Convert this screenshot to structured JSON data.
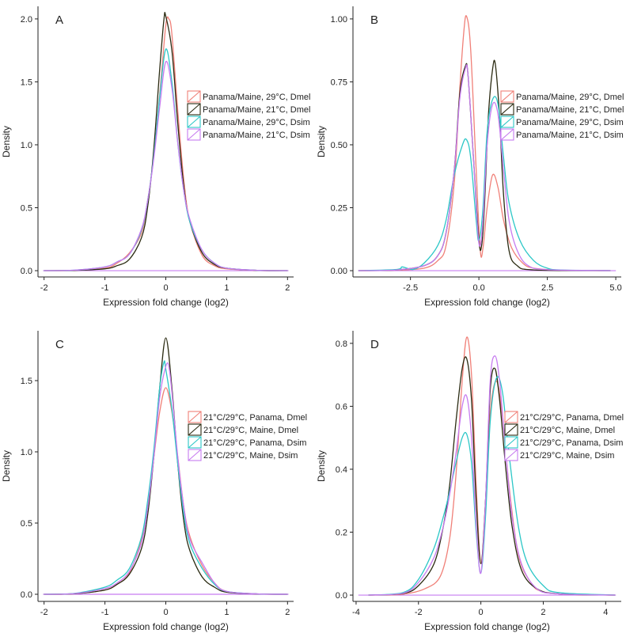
{
  "colors": {
    "red": "#f08078",
    "black": "#2b2b12",
    "cyan": "#2cc7c7",
    "purple": "#c77cf0"
  },
  "chart_data": [
    {
      "type": "line",
      "panel": "A",
      "xlabel": "Expression fold change (log2)",
      "ylabel": "Density",
      "xlim": [
        -2.1,
        2.1
      ],
      "ylim": [
        -0.05,
        2.1
      ],
      "xticks": [
        -2,
        -1,
        0,
        1,
        2
      ],
      "xtick_labels": [
        "-2",
        "-1",
        "0",
        "1",
        "2"
      ],
      "yticks": [
        0,
        0.5,
        1,
        1.5,
        2
      ],
      "ytick_labels": [
        "0.0",
        "0.5",
        "1.0",
        "1.5",
        "2.0"
      ],
      "legend_position": "right",
      "legend": [
        "Panama/Maine, 29°C, Dmel",
        "Panama/Maine, 21°C, Dmel",
        "Panama/Maine, 29°C, Dsim",
        "Panama/Maine, 21°C, Dsim"
      ],
      "series": [
        {
          "name": "Panama/Maine, 29°C, Dmel",
          "color": "red",
          "x": [
            -2,
            -1.5,
            -1,
            -0.8,
            -0.6,
            -0.4,
            -0.3,
            -0.2,
            -0.1,
            0,
            0.05,
            0.1,
            0.2,
            0.3,
            0.4,
            0.6,
            0.8,
            1,
            1.5,
            2
          ],
          "y": [
            0,
            0.003,
            0.02,
            0.06,
            0.14,
            0.3,
            0.55,
            0.9,
            1.4,
            1.95,
            2.0,
            1.88,
            1.25,
            0.7,
            0.38,
            0.12,
            0.04,
            0.015,
            0.002,
            0
          ]
        },
        {
          "name": "Panama/Maine, 21°C, Dmel",
          "color": "black",
          "x": [
            -2,
            -1.5,
            -1,
            -0.8,
            -0.6,
            -0.4,
            -0.3,
            -0.2,
            -0.1,
            -0.03,
            0,
            0.1,
            0.2,
            0.3,
            0.4,
            0.6,
            0.8,
            1,
            1.5,
            2
          ],
          "y": [
            0,
            0.002,
            0.015,
            0.04,
            0.09,
            0.26,
            0.5,
            0.95,
            1.6,
            2.0,
            2.02,
            1.75,
            1.15,
            0.65,
            0.38,
            0.14,
            0.05,
            0.02,
            0.002,
            0
          ]
        },
        {
          "name": "Panama/Maine, 29°C, Dsim",
          "color": "cyan",
          "x": [
            -2,
            -1.5,
            -1,
            -0.8,
            -0.6,
            -0.4,
            -0.3,
            -0.2,
            -0.1,
            0,
            0.1,
            0.2,
            0.3,
            0.4,
            0.6,
            0.8,
            1,
            1.5,
            2
          ],
          "y": [
            0,
            0.004,
            0.03,
            0.07,
            0.13,
            0.32,
            0.55,
            0.9,
            1.38,
            1.76,
            1.5,
            1.0,
            0.62,
            0.38,
            0.16,
            0.06,
            0.02,
            0.003,
            0
          ]
        },
        {
          "name": "Panama/Maine, 21°C, Dsim",
          "color": "purple",
          "x": [
            -2,
            -1.5,
            -1,
            -0.8,
            -0.6,
            -0.4,
            -0.3,
            -0.2,
            -0.1,
            0,
            0.1,
            0.2,
            0.3,
            0.4,
            0.6,
            0.8,
            1,
            1.5,
            2
          ],
          "y": [
            0,
            0.004,
            0.03,
            0.07,
            0.13,
            0.33,
            0.55,
            0.88,
            1.3,
            1.66,
            1.45,
            1.0,
            0.62,
            0.4,
            0.16,
            0.06,
            0.02,
            0.003,
            0
          ]
        }
      ]
    },
    {
      "type": "line",
      "panel": "B",
      "xlabel": "Expression fold change (log2)",
      "ylabel": "Density",
      "xlim": [
        -4.6,
        5.2
      ],
      "ylim": [
        -0.025,
        1.05
      ],
      "xticks": [
        -2.5,
        0,
        2.5,
        5
      ],
      "xtick_labels": [
        "-2.5",
        "0.0",
        "2.5",
        "5.0"
      ],
      "yticks": [
        0,
        0.25,
        0.5,
        0.75,
        1
      ],
      "ytick_labels": [
        "0.00",
        "0.25",
        "0.50",
        "0.75",
        "1.00"
      ],
      "legend_position": "right",
      "legend": [
        "Panama/Maine, 29°C, Dmel",
        "Panama/Maine, 21°C, Dmel",
        "Panama/Maine, 29°C, Dsim",
        "Panama/Maine, 21°C, Dsim"
      ],
      "series": [
        {
          "name": "Panama/Maine, 29°C, Dmel",
          "color": "red",
          "x": [
            -4.4,
            -3,
            -2,
            -1.5,
            -1.2,
            -0.9,
            -0.7,
            -0.55,
            -0.45,
            -0.3,
            -0.1,
            0.05,
            0.15,
            0.3,
            0.5,
            0.7,
            0.9,
            1.2,
            1.6,
            2,
            3,
            4.8
          ],
          "y": [
            0,
            0.002,
            0.01,
            0.04,
            0.1,
            0.35,
            0.72,
            0.95,
            1.01,
            0.88,
            0.4,
            0.08,
            0.09,
            0.25,
            0.38,
            0.33,
            0.2,
            0.09,
            0.03,
            0.01,
            0.002,
            0
          ]
        },
        {
          "name": "Panama/Maine, 21°C, Dmel",
          "color": "black",
          "x": [
            -4.4,
            -3,
            -2,
            -1.5,
            -1.2,
            -0.9,
            -0.7,
            -0.5,
            -0.4,
            -0.2,
            0,
            0.1,
            0.2,
            0.35,
            0.5,
            0.6,
            0.75,
            0.9,
            1.1,
            1.4,
            2,
            4.8
          ],
          "y": [
            0,
            0.003,
            0.02,
            0.06,
            0.15,
            0.4,
            0.7,
            0.81,
            0.78,
            0.45,
            0.12,
            0.1,
            0.25,
            0.62,
            0.8,
            0.82,
            0.62,
            0.3,
            0.08,
            0.02,
            0.003,
            0
          ]
        },
        {
          "name": "Panama/Maine, 29°C, Dsim",
          "color": "cyan",
          "x": [
            -4.4,
            -3,
            -2.8,
            -2.4,
            -2,
            -1.5,
            -1.2,
            -0.9,
            -0.6,
            -0.45,
            -0.3,
            -0.1,
            0,
            0.15,
            0.3,
            0.5,
            0.7,
            0.9,
            1.1,
            1.5,
            2,
            2.5,
            3,
            4.8
          ],
          "y": [
            0,
            0.005,
            0.015,
            0.005,
            0.03,
            0.1,
            0.2,
            0.38,
            0.5,
            0.52,
            0.45,
            0.2,
            0.12,
            0.25,
            0.55,
            0.68,
            0.66,
            0.45,
            0.27,
            0.12,
            0.04,
            0.01,
            0.003,
            0
          ]
        },
        {
          "name": "Panama/Maine, 21°C, Dsim",
          "color": "purple",
          "x": [
            -4.4,
            -3,
            -2,
            -1.5,
            -1.2,
            -0.9,
            -0.7,
            -0.5,
            -0.4,
            -0.2,
            0,
            0.15,
            0.3,
            0.5,
            0.7,
            0.9,
            1.1,
            1.4,
            1.8,
            2.5,
            4.8
          ],
          "y": [
            0,
            0.003,
            0.02,
            0.06,
            0.15,
            0.4,
            0.68,
            0.8,
            0.78,
            0.45,
            0.11,
            0.2,
            0.5,
            0.66,
            0.62,
            0.4,
            0.2,
            0.08,
            0.02,
            0.004,
            0
          ]
        }
      ]
    },
    {
      "type": "line",
      "panel": "C",
      "xlabel": "Expression fold change (log2)",
      "ylabel": "Density",
      "xlim": [
        -2.1,
        2.1
      ],
      "ylim": [
        -0.05,
        1.85
      ],
      "xticks": [
        -2,
        -1,
        0,
        1,
        2
      ],
      "xtick_labels": [
        "-2",
        "-1",
        "0",
        "1",
        "2"
      ],
      "yticks": [
        0,
        0.5,
        1,
        1.5
      ],
      "ytick_labels": [
        "0.0",
        "0.5",
        "1.0",
        "1.5"
      ],
      "legend_position": "right",
      "legend": [
        "21°C/29°C, Panama, Dmel",
        "21°C/29°C, Maine, Dmel",
        "21°C/29°C, Panama, Dsim",
        "21°C/29°C, Maine, Dsim"
      ],
      "series": [
        {
          "name": "21°C/29°C, Panama, Dmel",
          "color": "red",
          "x": [
            -2,
            -1.5,
            -1,
            -0.8,
            -0.6,
            -0.4,
            -0.3,
            -0.2,
            -0.1,
            0,
            0.1,
            0.2,
            0.3,
            0.4,
            0.6,
            0.8,
            1,
            1.5,
            2
          ],
          "y": [
            0,
            0.004,
            0.03,
            0.07,
            0.15,
            0.38,
            0.62,
            0.95,
            1.28,
            1.45,
            1.28,
            0.95,
            0.6,
            0.4,
            0.2,
            0.08,
            0.02,
            0.003,
            0
          ]
        },
        {
          "name": "21°C/29°C, Maine, Dmel",
          "color": "black",
          "x": [
            -2,
            -1.5,
            -1,
            -0.8,
            -0.6,
            -0.4,
            -0.3,
            -0.2,
            -0.1,
            0,
            0.1,
            0.2,
            0.3,
            0.4,
            0.6,
            0.8,
            1,
            1.5,
            2
          ],
          "y": [
            0,
            0.004,
            0.03,
            0.07,
            0.14,
            0.32,
            0.55,
            0.95,
            1.45,
            1.8,
            1.45,
            0.9,
            0.5,
            0.3,
            0.12,
            0.05,
            0.015,
            0.002,
            0
          ]
        },
        {
          "name": "21°C/29°C, Panama, Dsim",
          "color": "cyan",
          "x": [
            -2,
            -1.5,
            -1,
            -0.8,
            -0.6,
            -0.4,
            -0.3,
            -0.2,
            -0.1,
            -0.03,
            0,
            0.1,
            0.2,
            0.3,
            0.4,
            0.6,
            0.8,
            1,
            1.5,
            2
          ],
          "y": [
            0,
            0.006,
            0.05,
            0.1,
            0.18,
            0.4,
            0.65,
            1.0,
            1.45,
            1.63,
            1.58,
            1.3,
            0.9,
            0.55,
            0.35,
            0.18,
            0.07,
            0.02,
            0.003,
            0
          ]
        },
        {
          "name": "21°C/29°C, Maine, Dsim",
          "color": "purple",
          "x": [
            -2,
            -1.5,
            -1,
            -0.8,
            -0.6,
            -0.4,
            -0.3,
            -0.2,
            -0.1,
            0,
            0.05,
            0.1,
            0.2,
            0.3,
            0.4,
            0.6,
            0.8,
            1,
            1.5,
            2
          ],
          "y": [
            0,
            0.005,
            0.04,
            0.08,
            0.16,
            0.36,
            0.6,
            0.95,
            1.38,
            1.6,
            1.6,
            1.42,
            0.95,
            0.6,
            0.38,
            0.22,
            0.08,
            0.02,
            0.003,
            0
          ]
        }
      ]
    },
    {
      "type": "line",
      "panel": "D",
      "xlabel": "Expression fold change (log2)",
      "ylabel": "Density",
      "xlim": [
        -4.1,
        4.5
      ],
      "ylim": [
        -0.02,
        0.84
      ],
      "xticks": [
        -4,
        -2,
        0,
        2,
        4
      ],
      "xtick_labels": [
        "-4",
        "-2",
        "0",
        "2",
        "4"
      ],
      "yticks": [
        0,
        0.2,
        0.4,
        0.6,
        0.8
      ],
      "ytick_labels": [
        "0.0",
        "0.2",
        "0.4",
        "0.6",
        "0.8"
      ],
      "legend_position": "right",
      "legend": [
        "21°C/29°C, Panama, Dmel",
        "21°C/29°C, Maine, Dmel",
        "21°C/29°C, Panama, Dsim",
        "21°C/29°C, Maine, Dsim"
      ],
      "series": [
        {
          "name": "21°C/29°C, Panama, Dmel",
          "color": "red",
          "x": [
            -3.6,
            -2.5,
            -1.8,
            -1.3,
            -1,
            -0.8,
            -0.6,
            -0.45,
            -0.3,
            -0.15,
            0,
            0.15,
            0.3,
            0.5,
            0.7,
            0.9,
            1.2,
            1.6,
            2,
            3,
            4.3
          ],
          "y": [
            0,
            0.003,
            0.02,
            0.06,
            0.18,
            0.38,
            0.68,
            0.82,
            0.7,
            0.35,
            0.1,
            0.3,
            0.58,
            0.68,
            0.56,
            0.35,
            0.13,
            0.04,
            0.01,
            0.002,
            0
          ]
        },
        {
          "name": "21°C/29°C, Maine, Dmel",
          "color": "black",
          "x": [
            -3.6,
            -2.5,
            -2,
            -1.5,
            -1.2,
            -1,
            -0.8,
            -0.6,
            -0.45,
            -0.3,
            -0.15,
            0,
            0.15,
            0.3,
            0.45,
            0.6,
            0.8,
            1,
            1.3,
            1.8,
            2.5,
            4.3
          ],
          "y": [
            0,
            0.005,
            0.03,
            0.1,
            0.22,
            0.35,
            0.55,
            0.72,
            0.75,
            0.62,
            0.3,
            0.1,
            0.3,
            0.65,
            0.72,
            0.62,
            0.4,
            0.22,
            0.08,
            0.02,
            0.004,
            0
          ]
        },
        {
          "name": "21°C/29°C, Panama, Dsim",
          "color": "cyan",
          "x": [
            -3.6,
            -2.5,
            -2,
            -1.5,
            -1.2,
            -1,
            -0.8,
            -0.6,
            -0.45,
            -0.3,
            -0.15,
            0,
            0.15,
            0.3,
            0.5,
            0.7,
            0.9,
            1.2,
            1.5,
            2,
            2.5,
            4.3
          ],
          "y": [
            0,
            0.008,
            0.05,
            0.15,
            0.25,
            0.33,
            0.42,
            0.5,
            0.51,
            0.42,
            0.2,
            0.07,
            0.25,
            0.55,
            0.69,
            0.64,
            0.45,
            0.22,
            0.1,
            0.03,
            0.008,
            0
          ]
        },
        {
          "name": "21°C/29°C, Maine, Dsim",
          "color": "purple",
          "x": [
            -3.6,
            -2.5,
            -2,
            -1.5,
            -1.2,
            -1,
            -0.8,
            -0.6,
            -0.45,
            -0.3,
            -0.15,
            0,
            0.15,
            0.3,
            0.45,
            0.6,
            0.8,
            1,
            1.3,
            1.8,
            2.5,
            4.3
          ],
          "y": [
            0,
            0.006,
            0.04,
            0.12,
            0.22,
            0.32,
            0.45,
            0.6,
            0.63,
            0.5,
            0.22,
            0.07,
            0.3,
            0.68,
            0.76,
            0.68,
            0.45,
            0.25,
            0.1,
            0.02,
            0.004,
            0
          ]
        }
      ]
    }
  ]
}
